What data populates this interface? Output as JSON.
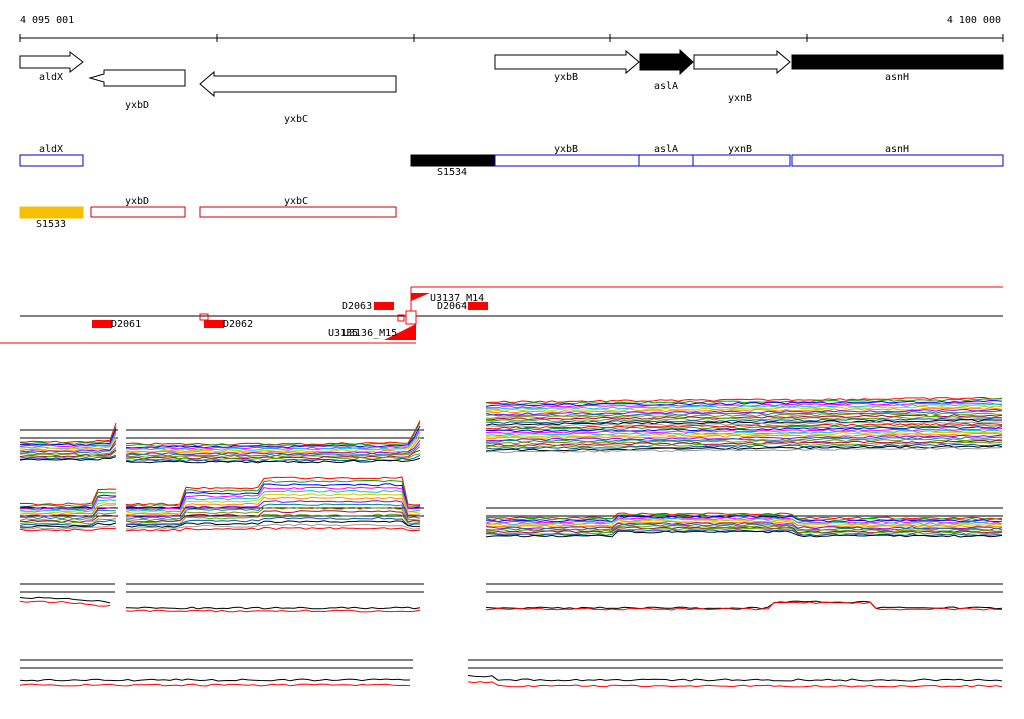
{
  "ruler": {
    "start_label": "4 095 001",
    "end_label": "4 100 000"
  },
  "genes_track": {
    "forward": [
      {
        "label": "aldX",
        "color": "#ffffff"
      },
      {
        "label": "yxbB",
        "color": "#ffffff"
      },
      {
        "label": "aslA",
        "color": "#000000"
      },
      {
        "label": "yxnB",
        "color": "#ffffff"
      },
      {
        "label": "asnH",
        "color": "#000000"
      }
    ],
    "reverse": [
      {
        "label": "yxbD"
      },
      {
        "label": "yxbC"
      }
    ]
  },
  "transcripts_forward": {
    "color": "#0000cc",
    "items": [
      {
        "label": "aldX"
      },
      {
        "label": "yxbB"
      },
      {
        "label": "aslA"
      },
      {
        "label": "yxnB"
      },
      {
        "label": "asnH"
      }
    ],
    "segment": {
      "label": "S1534",
      "color": "#000000"
    }
  },
  "transcripts_reverse": {
    "color": "#cc0000",
    "items": [
      {
        "label": "yxbD"
      },
      {
        "label": "yxbC"
      }
    ],
    "segment": {
      "label": "S1533",
      "color": "#f5c000"
    }
  },
  "features": {
    "color": "#ff0000",
    "labels": {
      "d2061": "D2061",
      "d2062": "D2062",
      "d2063": "D2063",
      "d2064": "D2064",
      "u3137": "U3137_M14",
      "u3136": "U3136_M15",
      "u3135": "U3135"
    }
  },
  "expression_panels": {
    "series_colors": [
      "#ff0000",
      "#00aa00",
      "#0000ff",
      "#ff00ff",
      "#00cccc",
      "#cccc00",
      "#ff8800",
      "#8800ff",
      "#008888",
      "#888800",
      "#aa0055",
      "#55aa00",
      "#0055aa",
      "#000000",
      "#999999"
    ],
    "summary_colors": [
      "#000000",
      "#ff0000"
    ]
  }
}
